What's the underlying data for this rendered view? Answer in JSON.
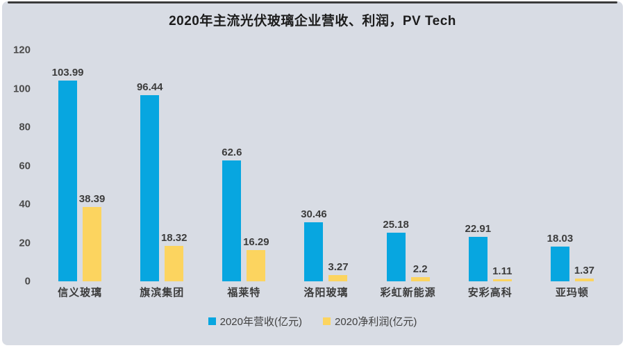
{
  "title": "2020年主流光伏玻璃企业营收、利润，PV Tech",
  "colors": {
    "background": "#d8dce4",
    "revenue_blue": "#07a6e0",
    "profit_yellow": "#fcd45f",
    "text_dark": "#3c3c3c"
  },
  "legend": {
    "revenue_label": "2020年营收(亿元)",
    "profit_label": "2020净利润(亿元)"
  },
  "chart_data": {
    "type": "bar",
    "title": "2020年主流光伏玻璃企业营收、利润，PV Tech",
    "categories": [
      "信义玻璃",
      "旗滨集团",
      "福莱特",
      "洛阳玻璃",
      "彩虹新能源",
      "安彩高科",
      "亚玛顿"
    ],
    "series": [
      {
        "name": "2020年营收(亿元)",
        "color": "#07a6e0",
        "values": [
          103.99,
          96.44,
          62.6,
          30.46,
          25.18,
          22.91,
          18.03
        ]
      },
      {
        "name": "2020净利润(亿元)",
        "color": "#fcd45f",
        "values": [
          38.39,
          18.32,
          16.29,
          3.27,
          2.2,
          1.11,
          1.37
        ]
      }
    ],
    "xlabel": "",
    "ylabel": "",
    "ylim": [
      0,
      120
    ],
    "yticks": [
      0,
      20,
      40,
      60,
      80,
      100,
      120
    ],
    "grid": false,
    "legend_position": "bottom"
  }
}
